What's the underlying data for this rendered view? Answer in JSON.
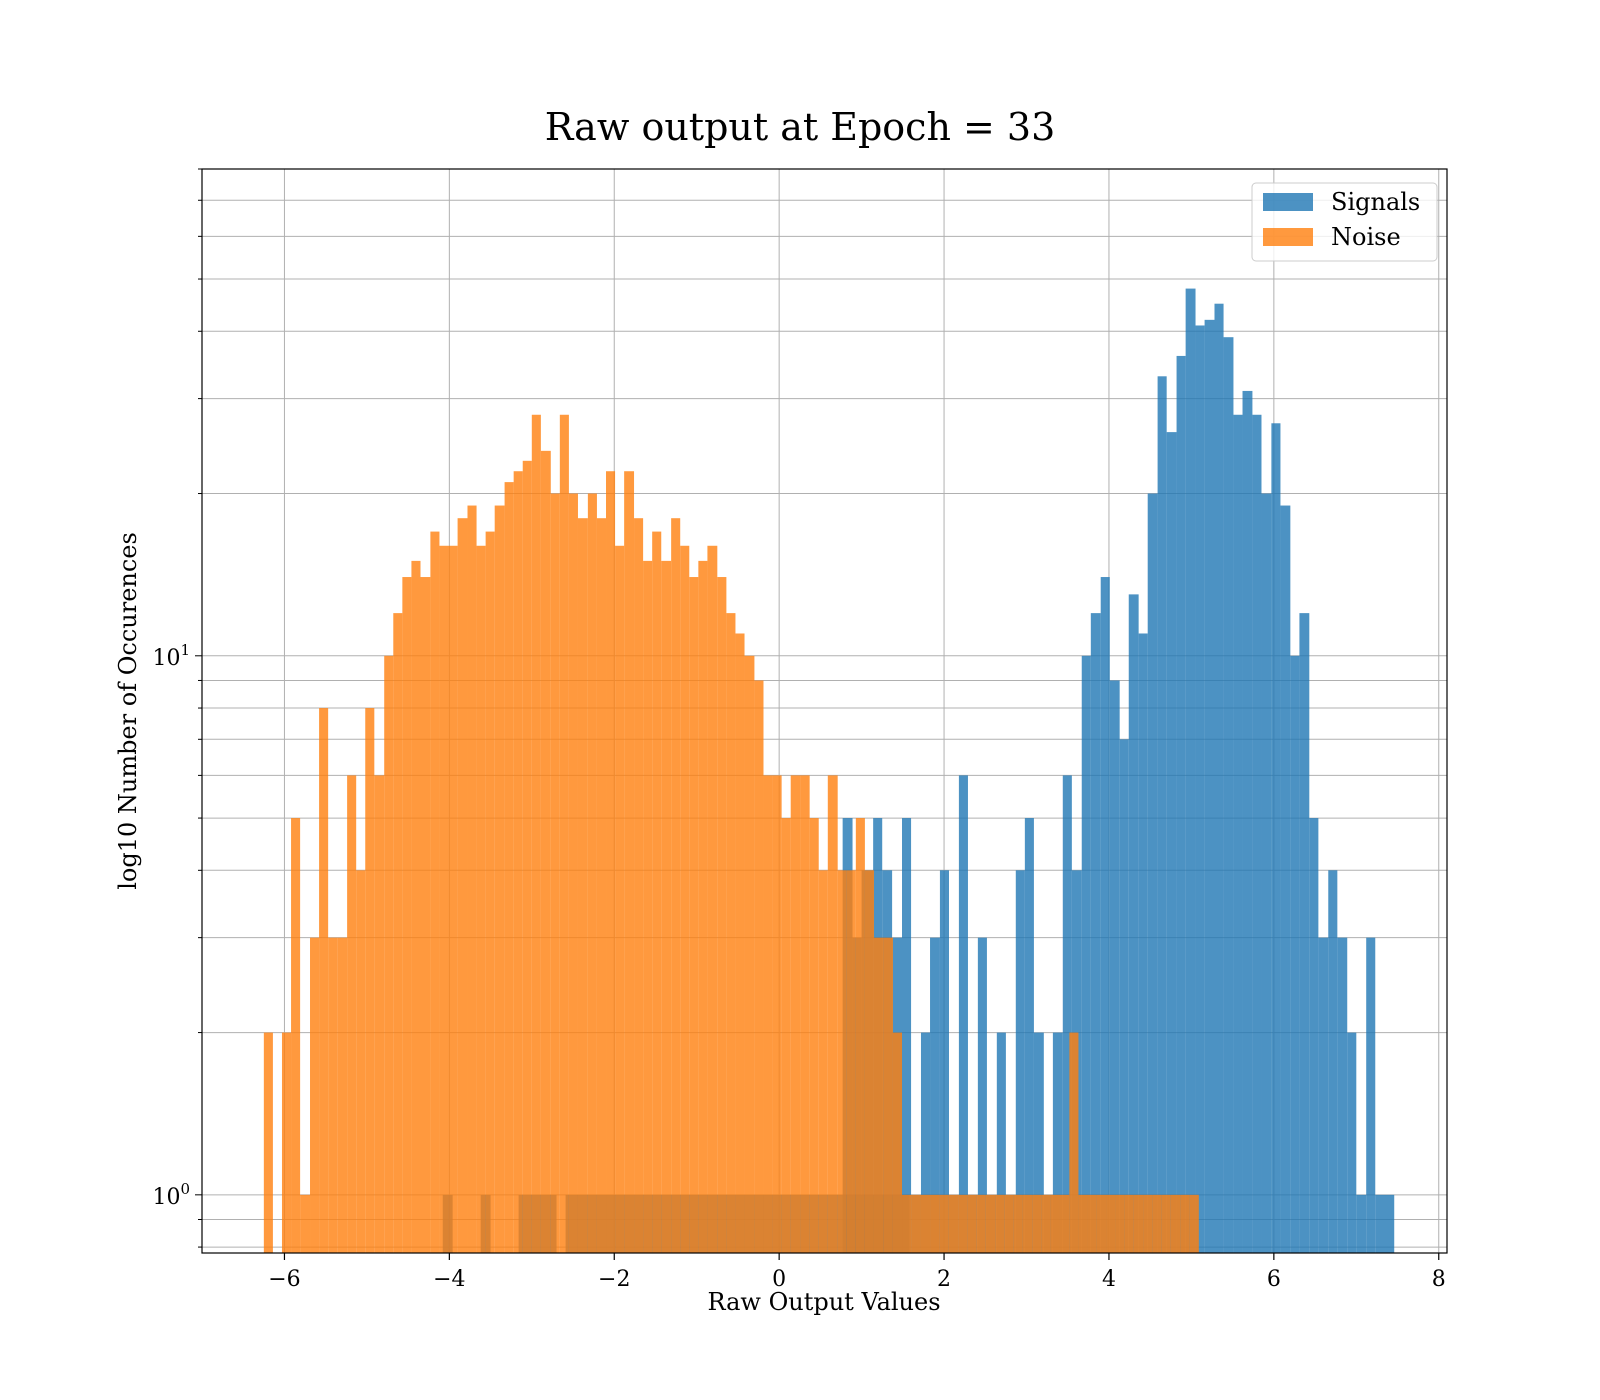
{
  "chart_data": {
    "type": "bar",
    "subtype": "histogram",
    "title": "Raw output at Epoch = 33",
    "xlabel": "Raw Output Values",
    "ylabel": "log10 Number of Occurences",
    "xlim": [
      -7.0,
      8.1
    ],
    "ylim": [
      0.78,
      80
    ],
    "yscale": "log",
    "grid": true,
    "legend_position": "top-right",
    "x_ticks": [
      -6,
      -4,
      -2,
      0,
      2,
      4,
      6,
      8
    ],
    "x_tick_labels": [
      "−6",
      "−4",
      "−2",
      "0",
      "2",
      "4",
      "6",
      "8"
    ],
    "y_tick_labels": [
      {
        "value": 1,
        "base": "10",
        "exp": "0"
      },
      {
        "value": 10,
        "base": "10",
        "exp": "1"
      }
    ],
    "series": [
      {
        "name": "Signals",
        "color": "#1f77b4",
        "opacity": 0.8,
        "bins": [
          [
            -4.08,
            -3.96,
            1
          ],
          [
            -3.62,
            -3.5,
            1
          ],
          [
            -3.16,
            -2.7,
            1
          ],
          [
            -2.59,
            1.58,
            1
          ],
          [
            0.77,
            0.89,
            5
          ],
          [
            0.89,
            1.0,
            3
          ],
          [
            1.0,
            1.14,
            4
          ],
          [
            1.14,
            1.25,
            5
          ],
          [
            1.25,
            1.37,
            4
          ],
          [
            1.37,
            1.49,
            3
          ],
          [
            1.49,
            1.6,
            5
          ],
          [
            1.6,
            1.72,
            1
          ],
          [
            1.72,
            1.83,
            2
          ],
          [
            1.83,
            1.95,
            3
          ],
          [
            1.95,
            2.06,
            4
          ],
          [
            2.06,
            2.18,
            1
          ],
          [
            2.18,
            2.29,
            6
          ],
          [
            2.29,
            2.41,
            1
          ],
          [
            2.41,
            2.52,
            3
          ],
          [
            2.52,
            2.64,
            1
          ],
          [
            2.64,
            2.75,
            2
          ],
          [
            2.75,
            2.87,
            1
          ],
          [
            2.87,
            2.98,
            4
          ],
          [
            2.98,
            3.09,
            5
          ],
          [
            3.09,
            3.21,
            2
          ],
          [
            3.21,
            3.32,
            1
          ],
          [
            3.32,
            3.44,
            2
          ],
          [
            3.44,
            3.55,
            6
          ],
          [
            3.55,
            3.67,
            4
          ],
          [
            3.67,
            3.78,
            10
          ],
          [
            3.78,
            3.9,
            12
          ],
          [
            3.9,
            4.01,
            14
          ],
          [
            4.01,
            4.13,
            9
          ],
          [
            4.13,
            4.24,
            7
          ],
          [
            4.24,
            4.36,
            13
          ],
          [
            4.36,
            4.47,
            11
          ],
          [
            4.47,
            4.59,
            20
          ],
          [
            4.59,
            4.7,
            33
          ],
          [
            4.7,
            4.82,
            26
          ],
          [
            4.82,
            4.93,
            36
          ],
          [
            4.93,
            5.05,
            48
          ],
          [
            5.05,
            5.16,
            41
          ],
          [
            5.16,
            5.28,
            42
          ],
          [
            5.28,
            5.39,
            45
          ],
          [
            5.39,
            5.51,
            39
          ],
          [
            5.51,
            5.62,
            28
          ],
          [
            5.62,
            5.74,
            31
          ],
          [
            5.74,
            5.85,
            28
          ],
          [
            5.85,
            5.97,
            20
          ],
          [
            5.97,
            6.08,
            27
          ],
          [
            6.08,
            6.2,
            19
          ],
          [
            6.2,
            6.31,
            10
          ],
          [
            6.31,
            6.43,
            12
          ],
          [
            6.43,
            6.54,
            5
          ],
          [
            6.54,
            6.66,
            3
          ],
          [
            6.66,
            6.77,
            4
          ],
          [
            6.77,
            6.89,
            3
          ],
          [
            6.89,
            7.0,
            2
          ],
          [
            7.0,
            7.12,
            1
          ],
          [
            7.12,
            7.23,
            3
          ],
          [
            7.23,
            7.46,
            1
          ]
        ]
      },
      {
        "name": "Noise",
        "color": "#ff7f0e",
        "opacity": 0.8,
        "bins": [
          [
            -6.25,
            -6.14,
            2
          ],
          [
            -6.03,
            -5.92,
            2
          ],
          [
            -5.92,
            -5.81,
            5
          ],
          [
            -5.81,
            -5.69,
            1
          ],
          [
            -5.69,
            -5.58,
            3
          ],
          [
            -5.58,
            -5.47,
            8
          ],
          [
            -5.47,
            -5.36,
            3
          ],
          [
            -5.36,
            -5.24,
            3
          ],
          [
            -5.24,
            -5.13,
            6
          ],
          [
            -5.13,
            -5.02,
            4
          ],
          [
            -5.02,
            -4.91,
            8
          ],
          [
            -4.91,
            -4.79,
            6
          ],
          [
            -4.79,
            -4.68,
            10
          ],
          [
            -4.68,
            -4.57,
            12
          ],
          [
            -4.57,
            -4.46,
            14
          ],
          [
            -4.46,
            -4.35,
            15
          ],
          [
            -4.35,
            -4.23,
            14
          ],
          [
            -4.23,
            -4.12,
            17
          ],
          [
            -4.12,
            -4.01,
            16
          ],
          [
            -4.01,
            -3.9,
            16
          ],
          [
            -3.9,
            -3.78,
            18
          ],
          [
            -3.78,
            -3.67,
            19
          ],
          [
            -3.67,
            -3.56,
            16
          ],
          [
            -3.56,
            -3.45,
            17
          ],
          [
            -3.45,
            -3.33,
            19
          ],
          [
            -3.33,
            -3.22,
            21
          ],
          [
            -3.22,
            -3.11,
            22
          ],
          [
            -3.11,
            -3.0,
            23
          ],
          [
            -3.0,
            -2.89,
            28
          ],
          [
            -2.89,
            -2.77,
            24
          ],
          [
            -2.77,
            -2.66,
            20
          ],
          [
            -2.66,
            -2.55,
            28
          ],
          [
            -2.55,
            -2.44,
            20
          ],
          [
            -2.44,
            -2.32,
            18
          ],
          [
            -2.32,
            -2.21,
            20
          ],
          [
            -2.21,
            -2.1,
            18
          ],
          [
            -2.1,
            -1.99,
            22
          ],
          [
            -1.99,
            -1.88,
            16
          ],
          [
            -1.88,
            -1.76,
            22
          ],
          [
            -1.76,
            -1.65,
            18
          ],
          [
            -1.65,
            -1.54,
            15
          ],
          [
            -1.54,
            -1.43,
            17
          ],
          [
            -1.43,
            -1.31,
            15
          ],
          [
            -1.31,
            -1.2,
            18
          ],
          [
            -1.2,
            -1.09,
            16
          ],
          [
            -1.09,
            -0.98,
            14
          ],
          [
            -0.98,
            -0.87,
            15
          ],
          [
            -0.87,
            -0.75,
            16
          ],
          [
            -0.75,
            -0.64,
            14
          ],
          [
            -0.64,
            -0.53,
            12
          ],
          [
            -0.53,
            -0.42,
            11
          ],
          [
            -0.42,
            -0.3,
            10
          ],
          [
            -0.3,
            -0.19,
            9
          ],
          [
            -0.19,
            -0.08,
            6
          ],
          [
            -0.08,
            0.03,
            6
          ],
          [
            0.03,
            0.14,
            5
          ],
          [
            0.14,
            0.26,
            6
          ],
          [
            0.26,
            0.37,
            6
          ],
          [
            0.37,
            0.48,
            5
          ],
          [
            0.48,
            0.59,
            4
          ],
          [
            0.59,
            0.71,
            6
          ],
          [
            0.71,
            0.82,
            4
          ],
          [
            0.82,
            0.93,
            4
          ],
          [
            0.93,
            1.04,
            5
          ],
          [
            1.04,
            1.15,
            4
          ],
          [
            1.15,
            1.27,
            3
          ],
          [
            1.27,
            1.38,
            3
          ],
          [
            1.38,
            1.49,
            2
          ],
          [
            1.49,
            1.6,
            1
          ],
          [
            1.6,
            1.72,
            1
          ],
          [
            1.72,
            1.83,
            1
          ],
          [
            1.83,
            1.94,
            1
          ],
          [
            1.94,
            2.05,
            1
          ],
          [
            2.05,
            2.17,
            1
          ],
          [
            2.17,
            2.28,
            1
          ],
          [
            2.28,
            2.39,
            1
          ],
          [
            2.39,
            2.5,
            1
          ],
          [
            2.5,
            2.62,
            1
          ],
          [
            2.62,
            2.73,
            1
          ],
          [
            2.73,
            2.84,
            1
          ],
          [
            2.84,
            2.95,
            1
          ],
          [
            2.95,
            3.07,
            1
          ],
          [
            3.07,
            3.18,
            1
          ],
          [
            3.18,
            3.29,
            1
          ],
          [
            3.29,
            3.4,
            1
          ],
          [
            3.4,
            3.52,
            1
          ],
          [
            3.52,
            3.63,
            2
          ],
          [
            3.63,
            3.74,
            1
          ],
          [
            3.74,
            3.85,
            1
          ],
          [
            3.85,
            3.97,
            1
          ],
          [
            3.97,
            4.08,
            1
          ],
          [
            4.08,
            4.19,
            1
          ],
          [
            4.19,
            4.3,
            1
          ],
          [
            4.3,
            4.42,
            1
          ],
          [
            4.42,
            4.53,
            1
          ],
          [
            4.53,
            4.64,
            1
          ],
          [
            4.64,
            4.75,
            1
          ],
          [
            4.75,
            4.87,
            1
          ],
          [
            4.87,
            4.98,
            1
          ],
          [
            4.98,
            5.09,
            1
          ]
        ]
      }
    ]
  }
}
